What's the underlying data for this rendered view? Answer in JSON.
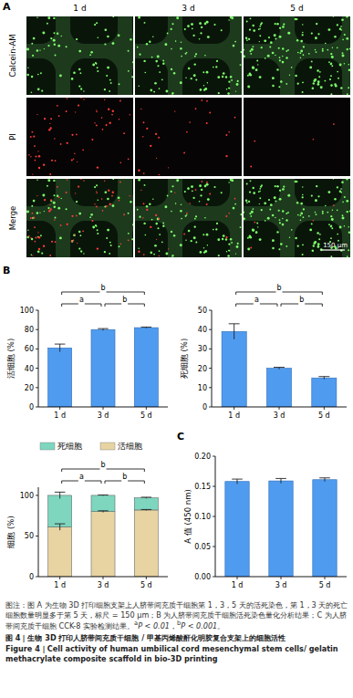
{
  "panel_labels": [
    "A",
    "B",
    "C"
  ],
  "microscopy": {
    "days": [
      "1 d",
      "3 d",
      "5 d"
    ],
    "stains": [
      "Calcein-AM",
      "PI",
      "Merge"
    ],
    "scale_bar": "150 μm"
  },
  "chart_data": [
    {
      "type": "bar",
      "y_label": "活细胞 (%)",
      "categories": [
        "1 d",
        "3 d",
        "5 d"
      ],
      "values": [
        61,
        80,
        82
      ],
      "errors": [
        4,
        1,
        0.6
      ],
      "color": "#4f9bef",
      "ylim": [
        0,
        100
      ],
      "yticks": [
        0,
        20,
        40,
        60,
        80,
        100
      ],
      "grid": false,
      "significance": [
        {
          "from": "1 d",
          "to": "3 d",
          "label": "a"
        },
        {
          "from": "3 d",
          "to": "5 d",
          "label": "b"
        },
        {
          "from": "1 d",
          "to": "5 d",
          "label": "b"
        }
      ]
    },
    {
      "type": "bar",
      "y_label": "死细胞 (%)",
      "categories": [
        "1 d",
        "3 d",
        "5 d"
      ],
      "values": [
        39,
        20,
        15
      ],
      "errors": [
        4,
        0.5,
        0.7
      ],
      "color": "#4f9bef",
      "ylim": [
        0,
        50
      ],
      "yticks": [
        0,
        10,
        20,
        30,
        40,
        50
      ],
      "grid": false,
      "significance": [
        {
          "from": "1 d",
          "to": "3 d",
          "label": "a"
        },
        {
          "from": "3 d",
          "to": "5 d",
          "label": "b"
        },
        {
          "from": "1 d",
          "to": "5 d",
          "label": "b"
        }
      ]
    },
    {
      "type": "bar",
      "stacked": true,
      "y_label": "细胞 (%)",
      "categories": [
        "1 d",
        "3 d",
        "5 d"
      ],
      "series": [
        {
          "name": "活细胞",
          "color": "#e8d4a2",
          "values": [
            61,
            80,
            82
          ],
          "errors": [
            4,
            1,
            0.6
          ]
        },
        {
          "name": "死细胞",
          "color": "#7ed6bf",
          "values": [
            39,
            20,
            15
          ],
          "errors": [
            4,
            0.5,
            0.7
          ]
        }
      ],
      "ylim": [
        0,
        110
      ],
      "yticks": [
        0,
        50,
        100
      ],
      "legend": "top",
      "grid": false,
      "significance": [
        {
          "from": "1 d",
          "to": "3 d",
          "label": "a"
        },
        {
          "from": "3 d",
          "to": "5 d",
          "label": "b"
        },
        {
          "from": "1 d",
          "to": "5 d",
          "label": "b"
        }
      ]
    },
    {
      "type": "bar",
      "y_label": "A 值 (450 nm)",
      "categories": [
        "1 d",
        "3 d",
        "5 d"
      ],
      "values": [
        0.158,
        0.159,
        0.161
      ],
      "errors": [
        0.004,
        0.004,
        0.003
      ],
      "color": "#4f9bef",
      "ylim": [
        0,
        0.2
      ],
      "yticks": [
        {
          "value": 0,
          "label": "0.00"
        },
        {
          "value": 0.05,
          "label": "0.05"
        },
        {
          "value": 0.1,
          "label": "0.10"
        },
        {
          "value": 0.15,
          "label": "0.15"
        },
        {
          "value": 0.2,
          "label": "0.20"
        }
      ],
      "grid": false
    }
  ],
  "caption": {
    "note": "图注：图 A 为生物 3D 打印细胞支架上人脐带间充质干细胞第 1，3，5 天的活死染色，第 1，3 天的死亡细胞数量明显多于第 5 天，标尺 = 150 μm；B 为人脐带间充质干细胞活死染色量化分析结果；C 为人脐带间充质干细胞 CCK-8 实验检测结果。",
    "significance": [
      {
        "mark": "a",
        "text": "P < 0.01，"
      },
      {
        "mark": "b",
        "text": "P < 0.001。"
      }
    ],
    "title_zh": "图 4｜生物 3D 打印人脐带间充质干细胞 / 甲基丙烯酸酐化明胶复合支架上的细胞活性",
    "title_en": "Figure 4｜Cell activity of human umbilical cord mesenchymal stem cells/ gelatin methacrylate composite scaffold in bio-3D printing"
  }
}
